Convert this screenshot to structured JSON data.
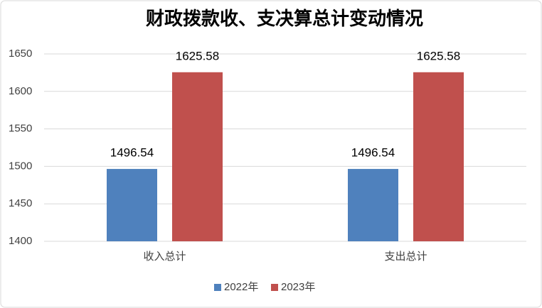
{
  "chart_data": {
    "type": "bar",
    "title": "财政拨款收、支决算总计变动情况",
    "categories": [
      "收入总计",
      "支出总计"
    ],
    "series": [
      {
        "name": "2022年",
        "color": "#4f81bd",
        "values": [
          1496.54,
          1496.54
        ]
      },
      {
        "name": "2023年",
        "color": "#c0504d",
        "values": [
          1625.58,
          1625.58
        ]
      }
    ],
    "ylim": [
      1400,
      1650
    ],
    "yticks": [
      1400,
      1450,
      1500,
      1550,
      1600,
      1650
    ],
    "grid": true,
    "legend": "bottom"
  }
}
